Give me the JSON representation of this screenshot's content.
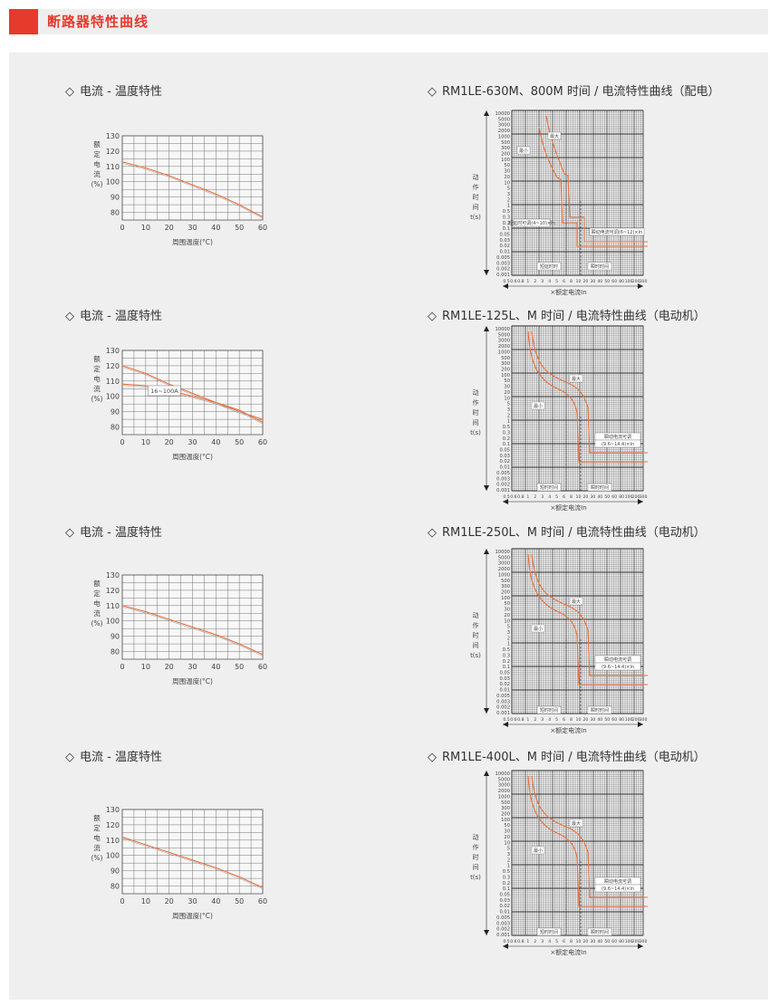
{
  "header": {
    "title": "断路器特性曲线"
  },
  "left_charts": [
    {
      "title": "电流 - 温度特性",
      "ylabel_chars": [
        "额",
        "定",
        "电",
        "流",
        "(%)"
      ],
      "xlabel": "周围温度(°C)",
      "chart_data": {
        "type": "line",
        "x": [
          0,
          10,
          20,
          30,
          40,
          50,
          60
        ],
        "xlim": [
          0,
          60
        ],
        "ylim": [
          75,
          130
        ],
        "yticks": [
          80,
          90,
          100,
          110,
          120,
          130
        ],
        "xticks": [
          0,
          10,
          20,
          30,
          40,
          50,
          60
        ],
        "series": [
          {
            "values": [
              113,
              109,
              104,
              98,
              92,
              85,
              77
            ]
          }
        ]
      }
    },
    {
      "title": "电流 - 温度特性",
      "ylabel_chars": [
        "额",
        "定",
        "电",
        "流",
        "(%)"
      ],
      "xlabel": "周围温度(°C)",
      "annotation": "16~100A",
      "chart_data": {
        "type": "line",
        "x": [
          0,
          10,
          20,
          30,
          40,
          50,
          60
        ],
        "xlim": [
          0,
          60
        ],
        "ylim": [
          75,
          130
        ],
        "yticks": [
          80,
          90,
          100,
          110,
          120,
          130
        ],
        "xticks": [
          0,
          10,
          20,
          30,
          40,
          50,
          60
        ],
        "series": [
          {
            "values": [
              120,
              115,
              108,
              102,
              96,
              90,
              85
            ]
          },
          {
            "values": [
              108,
              107,
              104,
              100,
              96,
              91,
              83
            ]
          }
        ]
      }
    },
    {
      "title": "电流 - 温度特性",
      "ylabel_chars": [
        "额",
        "定",
        "电",
        "流",
        "(%)"
      ],
      "xlabel": "周围温度(°C)",
      "chart_data": {
        "type": "line",
        "x": [
          0,
          10,
          20,
          30,
          40,
          50,
          60
        ],
        "xlim": [
          0,
          60
        ],
        "ylim": [
          75,
          130
        ],
        "yticks": [
          80,
          90,
          100,
          110,
          120,
          130
        ],
        "xticks": [
          0,
          10,
          20,
          30,
          40,
          50,
          60
        ],
        "series": [
          {
            "values": [
              110,
              106,
              101,
              96,
              91,
              85,
              78
            ]
          }
        ]
      }
    },
    {
      "title": "电流 - 温度特性",
      "ylabel_chars": [
        "额",
        "定",
        "电",
        "流",
        "(%)"
      ],
      "xlabel": "周围温度(°C)",
      "chart_data": {
        "type": "line",
        "x": [
          0,
          10,
          20,
          30,
          40,
          50,
          60
        ],
        "xlim": [
          0,
          60
        ],
        "ylim": [
          75,
          130
        ],
        "yticks": [
          80,
          90,
          100,
          110,
          120,
          130
        ],
        "xticks": [
          0,
          10,
          20,
          30,
          40,
          50,
          60
        ],
        "series": [
          {
            "values": [
              112,
              107,
              102,
              97,
              92,
              86,
              79
            ]
          }
        ]
      }
    }
  ],
  "right_charts": [
    {
      "title": "RM1LE-630M、800M 时间 / 电流特性曲线（配电）",
      "ylabel_chars": [
        "动",
        "作",
        "时",
        "间",
        "t(s)"
      ],
      "xlabel": "×额定电流In",
      "yticks": [
        "10000",
        "5000",
        "3000",
        "2000",
        "1000",
        "500",
        "300",
        "200",
        "100",
        "50",
        "30",
        "20",
        "10",
        "5",
        "3",
        "2",
        "1",
        "0.5",
        "0.3",
        "0.2",
        "0.1",
        "0.05",
        "0.03",
        "0.02",
        "0.01",
        "0.005",
        "0.003",
        "0.002",
        "0.001"
      ],
      "xticks": [
        "0.5",
        "0.6",
        "0.8",
        "1",
        "2",
        "3",
        "4",
        "5",
        "6",
        "8",
        "10",
        "20",
        "30",
        "40",
        "50",
        "60",
        "80",
        "100",
        "200",
        "300"
      ],
      "labels": [
        "最大",
        "最小",
        "短延时可调(4~10)×In",
        "瞬动电流可调(6~12)×In",
        "短延时时",
        "瞬时时间"
      ]
    },
    {
      "title": "RM1LE-125L、M 时间 / 电流特性曲线（电动机）",
      "ylabel_chars": [
        "动",
        "作",
        "时",
        "间",
        "t(s)"
      ],
      "xlabel": "×额定电流In",
      "yticks": [
        "10000",
        "5000",
        "3000",
        "2000",
        "1000",
        "500",
        "300",
        "200",
        "100",
        "50",
        "30",
        "20",
        "10",
        "5",
        "3",
        "2",
        "1",
        "0.5",
        "0.3",
        "0.2",
        "0.1",
        "0.05",
        "0.03",
        "0.02",
        "0.01",
        "0.005",
        "0.003",
        "0.002",
        "0.001"
      ],
      "xticks": [
        "0.5",
        "0.6",
        "0.8",
        "1",
        "2",
        "3",
        "4",
        "5",
        "6",
        "8",
        "10",
        "20",
        "30",
        "40",
        "50",
        "60",
        "80",
        "100",
        "200",
        "300"
      ],
      "labels": [
        "最大",
        "最小",
        "瞬动电流可调",
        "(9.6~14.4)×In",
        "短时时间",
        "瞬时时间"
      ]
    },
    {
      "title": "RM1LE-250L、M 时间 / 电流特性曲线（电动机）",
      "ylabel_chars": [
        "动",
        "作",
        "时",
        "间",
        "t(s)"
      ],
      "xlabel": "×额定电流In",
      "yticks": [
        "10000",
        "5000",
        "3000",
        "2000",
        "1000",
        "500",
        "300",
        "200",
        "100",
        "50",
        "30",
        "20",
        "10",
        "5",
        "3",
        "2",
        "1",
        "0.5",
        "0.3",
        "0.2",
        "0.1",
        "0.05",
        "0.03",
        "0.02",
        "0.01",
        "0.005",
        "0.003",
        "0.002",
        "0.001"
      ],
      "xticks": [
        "0.5",
        "0.6",
        "0.8",
        "1",
        "2",
        "3",
        "4",
        "5",
        "6",
        "8",
        "10",
        "20",
        "30",
        "40",
        "50",
        "60",
        "80",
        "100",
        "200",
        "300"
      ],
      "labels": [
        "最大",
        "最小",
        "瞬动电流可调",
        "(9.6~14.4)×In",
        "短时时间",
        "瞬时时间"
      ]
    },
    {
      "title": "RM1LE-400L、M 时间 / 电流特性曲线（电动机）",
      "ylabel_chars": [
        "动",
        "作",
        "时",
        "间",
        "t(s)"
      ],
      "xlabel": "×额定电流In",
      "yticks": [
        "10000",
        "5000",
        "3000",
        "2000",
        "1000",
        "500",
        "300",
        "200",
        "100",
        "50",
        "30",
        "20",
        "10",
        "5",
        "3",
        "2",
        "1",
        "0.5",
        "0.3",
        "0.2",
        "0.1",
        "0.05",
        "0.03",
        "0.02",
        "0.01",
        "0.005",
        "0.003",
        "0.002",
        "0.001"
      ],
      "xticks": [
        "0.5",
        "0.6",
        "0.8",
        "1",
        "2",
        "3",
        "4",
        "5",
        "6",
        "8",
        "10",
        "20",
        "30",
        "40",
        "50",
        "60",
        "80",
        "100",
        "200",
        "300"
      ],
      "labels": [
        "最大",
        "最小",
        "瞬动电流可调",
        "(9.6~14.4)×In",
        "短时时间",
        "瞬时时间"
      ]
    }
  ],
  "colors": {
    "accent": "#e53a2c",
    "curve": "#e8713c",
    "grid": "#555555"
  },
  "icon_names": {
    "bullet": "diamond-outline-icon"
  }
}
